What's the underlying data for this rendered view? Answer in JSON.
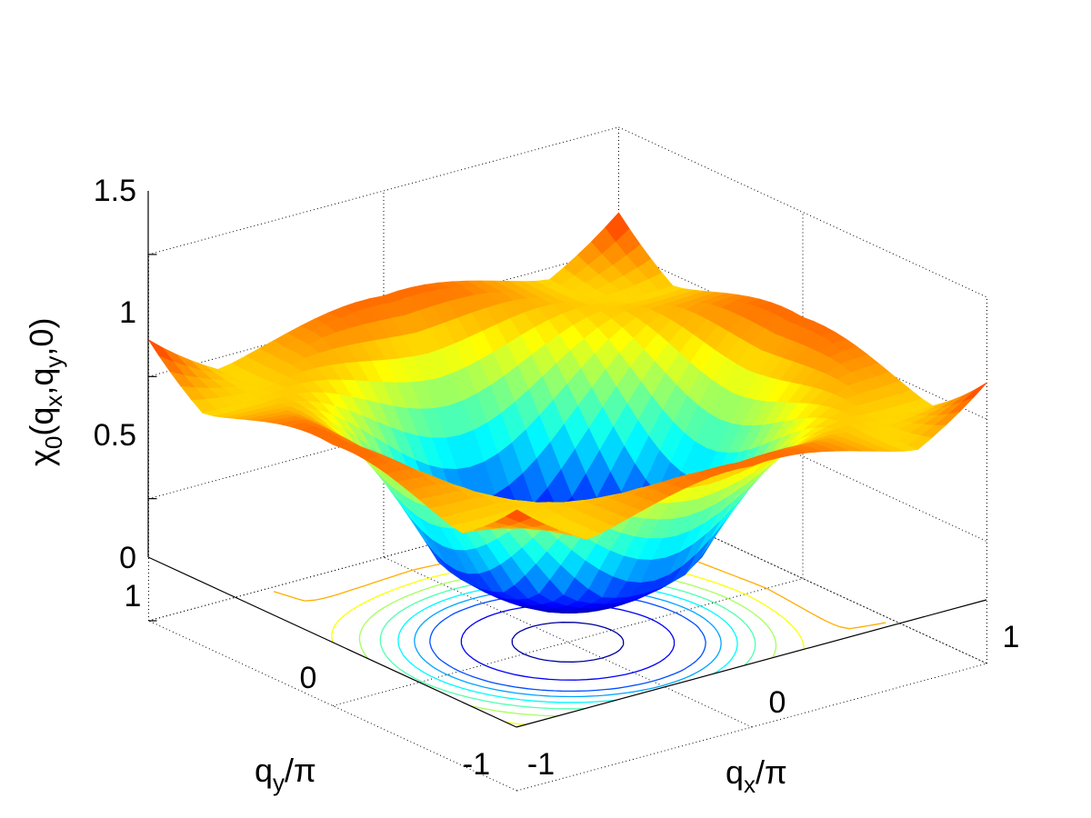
{
  "chart_data": {
    "type": "surface",
    "title": "",
    "xlabel": {
      "base": "q",
      "sub": "x",
      "tail": "/π"
    },
    "ylabel": {
      "base": "q",
      "sub": "y",
      "tail": "/π"
    },
    "zlabel": {
      "base": "χ",
      "sub": "0",
      "tail": "(q",
      "sub2": "x",
      "mid": ",q",
      "sub3": "y",
      "end": ",0)"
    },
    "xlim": [
      -1,
      1
    ],
    "ylim": [
      -1,
      1
    ],
    "zlim": [
      0,
      1.5
    ],
    "x_ticks": [
      "-1",
      "0",
      "1"
    ],
    "y_ticks": [
      "-1",
      "0",
      "1"
    ],
    "z_ticks": [
      "0",
      "0.5",
      "1",
      "1.5"
    ],
    "z_tick_values": [
      0,
      0.5,
      1,
      1.5
    ],
    "grid": true,
    "colormap": "jet",
    "contour_projection": true,
    "surface_samples": {
      "qx_over_pi": [
        -1,
        0,
        1,
        -1,
        0,
        1,
        -1,
        0,
        1
      ],
      "qy_over_pi": [
        -1,
        -1,
        -1,
        0,
        0,
        0,
        1,
        1,
        1
      ],
      "chi0": [
        1.35,
        0.75,
        1.15,
        0.75,
        0.16,
        0.75,
        1.15,
        0.75,
        1.35
      ]
    },
    "contour_levels": [
      0.2,
      0.3,
      0.4,
      0.5,
      0.6,
      0.7,
      0.8,
      0.9,
      1.0,
      1.1,
      1.2
    ]
  }
}
